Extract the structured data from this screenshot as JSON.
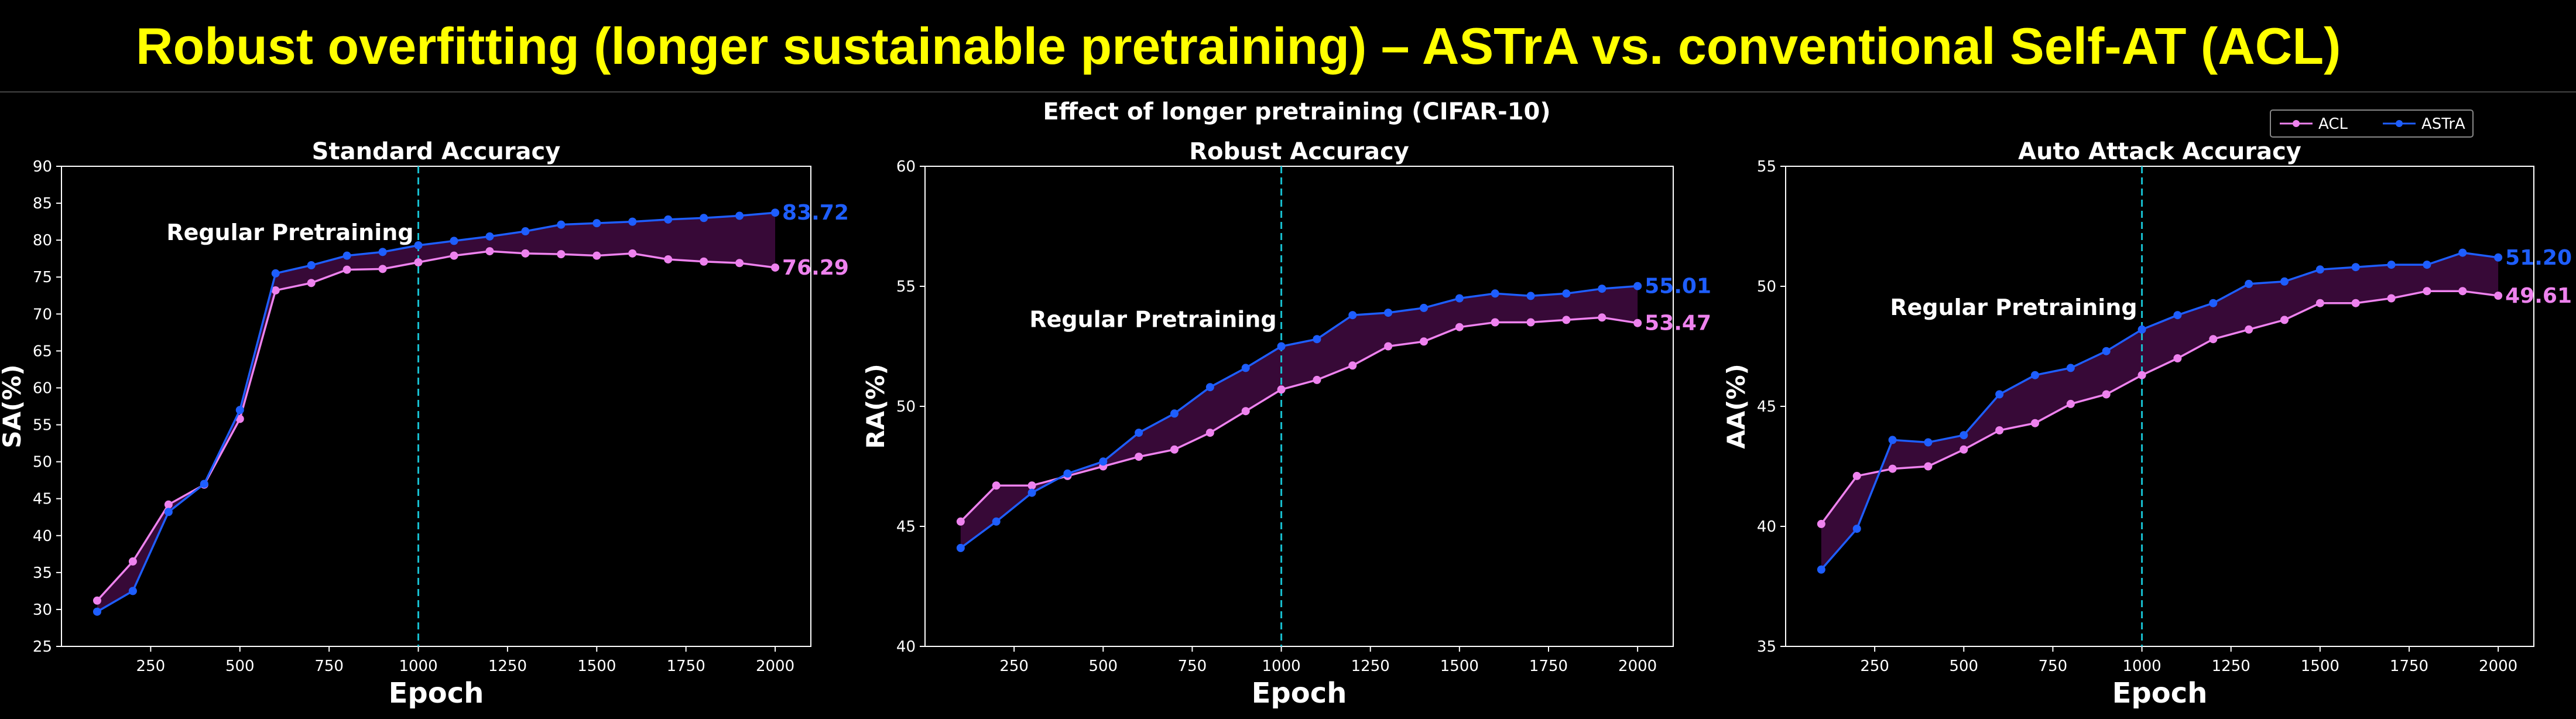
{
  "slide_title": "Robust overfitting (longer sustainable pretraining) – ASTrA vs. conventional Self-AT (ACL)",
  "figure_title": "Effect of longer pretraining (CIFAR-10)",
  "legend": [
    {
      "name": "ACL",
      "color": "#ee82ee"
    },
    {
      "name": "ASTrA",
      "color": "#1e5eff"
    }
  ],
  "colors": {
    "acl": "#ee82ee",
    "astra": "#1e5eff",
    "fill": "#3a0a3a",
    "vline": "#17becf",
    "axis": "#ffffff"
  },
  "chart_data": [
    {
      "type": "line",
      "title": "Standard Accuracy",
      "xlabel": "Epoch",
      "ylabel": "SA(%)",
      "xlim": [
        0,
        2100
      ],
      "ylim": [
        25,
        90
      ],
      "xticks": [
        250,
        500,
        750,
        1000,
        1250,
        1500,
        1750,
        2000
      ],
      "yticks": [
        25,
        30,
        35,
        40,
        45,
        50,
        55,
        60,
        65,
        70,
        75,
        80,
        85,
        90
      ],
      "vline": 1000,
      "annotation": "Regular Pretraining",
      "x": [
        100,
        200,
        300,
        400,
        500,
        600,
        700,
        800,
        900,
        1000,
        1100,
        1200,
        1300,
        1400,
        1500,
        1600,
        1700,
        1800,
        1900,
        2000
      ],
      "series": [
        {
          "name": "ACL",
          "values": [
            31.2,
            36.5,
            44.2,
            46.9,
            55.8,
            73.2,
            74.2,
            76.0,
            76.1,
            77.0,
            77.9,
            78.5,
            78.2,
            78.1,
            77.9,
            78.2,
            77.4,
            77.1,
            76.9,
            76.29
          ]
        },
        {
          "name": "ASTrA",
          "values": [
            29.7,
            32.5,
            43.2,
            47.0,
            57.0,
            75.5,
            76.6,
            77.9,
            78.4,
            79.3,
            79.9,
            80.5,
            81.2,
            82.1,
            82.3,
            82.5,
            82.8,
            83.0,
            83.3,
            83.72
          ]
        }
      ],
      "end_labels": [
        "76.29",
        "83.72"
      ]
    },
    {
      "type": "line",
      "title": "Robust Accuracy",
      "xlabel": "Epoch",
      "ylabel": "RA(%)",
      "xlim": [
        0,
        2100
      ],
      "ylim": [
        40,
        60
      ],
      "xticks": [
        250,
        500,
        750,
        1000,
        1250,
        1500,
        1750,
        2000
      ],
      "yticks": [
        40,
        45,
        50,
        55,
        60
      ],
      "vline": 1000,
      "annotation": "Regular Pretraining",
      "x": [
        100,
        200,
        300,
        400,
        500,
        600,
        700,
        800,
        900,
        1000,
        1100,
        1200,
        1300,
        1400,
        1500,
        1600,
        1700,
        1800,
        1900,
        2000
      ],
      "series": [
        {
          "name": "ACL",
          "values": [
            45.2,
            46.7,
            46.7,
            47.1,
            47.5,
            47.9,
            48.2,
            48.9,
            49.8,
            50.7,
            51.1,
            51.7,
            52.5,
            52.7,
            53.3,
            53.5,
            53.5,
            53.6,
            53.7,
            53.47
          ]
        },
        {
          "name": "ASTrA",
          "values": [
            44.1,
            45.2,
            46.4,
            47.2,
            47.7,
            48.9,
            49.7,
            50.8,
            51.6,
            52.5,
            52.8,
            53.8,
            53.9,
            54.1,
            54.5,
            54.7,
            54.6,
            54.7,
            54.9,
            55.01
          ]
        }
      ],
      "end_labels": [
        "53.47",
        "55.01"
      ]
    },
    {
      "type": "line",
      "title": "Auto Attack Accuracy",
      "xlabel": "Epoch",
      "ylabel": "AA(%)",
      "xlim": [
        0,
        2100
      ],
      "ylim": [
        35,
        55
      ],
      "xticks": [
        250,
        500,
        750,
        1000,
        1250,
        1500,
        1750,
        2000
      ],
      "yticks": [
        35,
        40,
        45,
        50,
        55
      ],
      "vline": 1000,
      "annotation": "Regular Pretraining",
      "x": [
        100,
        200,
        300,
        400,
        500,
        600,
        700,
        800,
        900,
        1000,
        1100,
        1200,
        1300,
        1400,
        1500,
        1600,
        1700,
        1800,
        1900,
        2000
      ],
      "series": [
        {
          "name": "ACL",
          "values": [
            40.1,
            42.1,
            42.4,
            42.5,
            43.2,
            44.0,
            44.3,
            45.1,
            45.5,
            46.3,
            47.0,
            47.8,
            48.2,
            48.6,
            49.3,
            49.3,
            49.5,
            49.8,
            49.8,
            49.61
          ]
        },
        {
          "name": "ASTrA",
          "values": [
            38.2,
            39.9,
            43.6,
            43.5,
            43.8,
            45.5,
            46.3,
            46.6,
            47.3,
            48.2,
            48.8,
            49.3,
            50.1,
            50.2,
            50.7,
            50.8,
            50.9,
            50.9,
            51.4,
            51.2
          ]
        }
      ],
      "end_labels": [
        "49.61",
        "51.20"
      ]
    }
  ]
}
